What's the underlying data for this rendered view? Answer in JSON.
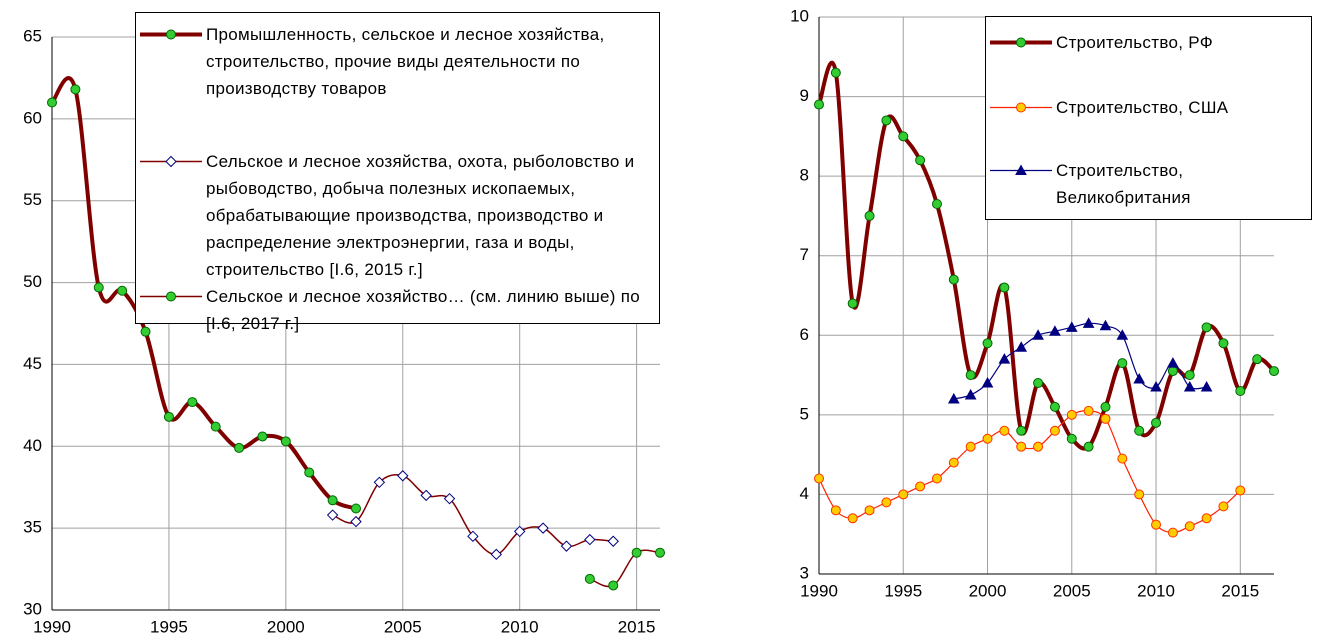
{
  "chart_data": [
    {
      "type": "line",
      "xlim": [
        1990,
        2016
      ],
      "xticks": [
        1990,
        1995,
        2000,
        2005,
        2010,
        2015
      ],
      "ylim": [
        30,
        65
      ],
      "yticks": [
        30,
        35,
        40,
        45,
        50,
        55,
        60,
        65
      ],
      "grid": true,
      "legend": "top-right",
      "x": [
        1990,
        1991,
        1992,
        1993,
        1994,
        1995,
        1996,
        1997,
        1998,
        1999,
        2000,
        2001,
        2002,
        2003,
        2004,
        2005,
        2006,
        2007,
        2008,
        2009,
        2010,
        2011,
        2012,
        2013,
        2014,
        2015,
        2016
      ],
      "series": [
        {
          "name": "Промышленность, сельское и лесное хозяйства, строительство, прочие виды деятельности по производству товаров",
          "color": "#800000",
          "width": 4,
          "marker": "circle",
          "marker_fill": "#33cc33",
          "marker_stroke": "#006600",
          "values": [
            61,
            61.8,
            49.7,
            49.5,
            47,
            41.8,
            42.7,
            41.2,
            39.9,
            40.6,
            40.3,
            38.4,
            36.7,
            36.2,
            null,
            null,
            null,
            null,
            null,
            null,
            null,
            null,
            null,
            null,
            null,
            null,
            null
          ]
        },
        {
          "name": "Сельское и лесное хозяйства, охота, рыболовство и рыбоводство, добыча полезных ископаемых, обрабатывающие производства, производство и распределение электроэнергии, газа и воды, строительство [I.6, 2015 г.]",
          "color": "#800000",
          "width": 1.5,
          "marker": "diamond",
          "marker_fill": "#ffffff",
          "marker_stroke": "#000080",
          "values": [
            null,
            null,
            null,
            null,
            null,
            null,
            null,
            null,
            null,
            null,
            null,
            null,
            35.8,
            35.4,
            37.8,
            38.2,
            37,
            36.8,
            34.5,
            33.4,
            34.8,
            35,
            33.9,
            34.3,
            34.2,
            null,
            null
          ]
        },
        {
          "name": "Сельское и лесное хозяйство… (см. линию выше) по [I.6, 2017 г.]",
          "color": "#800000",
          "width": 1.5,
          "marker": "circle",
          "marker_fill": "#33cc33",
          "marker_stroke": "#006600",
          "values": [
            null,
            null,
            null,
            null,
            null,
            null,
            null,
            null,
            null,
            null,
            null,
            null,
            null,
            null,
            null,
            null,
            null,
            null,
            null,
            null,
            null,
            null,
            null,
            31.9,
            31.5,
            33.5,
            33.5
          ]
        }
      ]
    },
    {
      "type": "line",
      "xlim": [
        1990,
        2017
      ],
      "xticks": [
        1990,
        1995,
        2000,
        2005,
        2010,
        2015
      ],
      "ylim": [
        3,
        10
      ],
      "yticks": [
        3,
        4,
        5,
        6,
        7,
        8,
        9,
        10
      ],
      "grid": true,
      "legend": "top-right",
      "x": [
        1990,
        1991,
        1992,
        1993,
        1994,
        1995,
        1996,
        1997,
        1998,
        1999,
        2000,
        2001,
        2002,
        2003,
        2004,
        2005,
        2006,
        2007,
        2008,
        2009,
        2010,
        2011,
        2012,
        2013,
        2014,
        2015,
        2016,
        2017
      ],
      "series": [
        {
          "name": "Строительство, РФ",
          "color": "#800000",
          "width": 4,
          "marker": "circle",
          "marker_fill": "#33cc33",
          "marker_stroke": "#006600",
          "values": [
            8.9,
            9.3,
            6.4,
            7.5,
            8.7,
            8.5,
            8.2,
            7.65,
            6.7,
            5.5,
            5.9,
            6.6,
            4.8,
            5.4,
            5.1,
            4.7,
            4.6,
            5.1,
            5.65,
            4.8,
            4.9,
            5.55,
            5.5,
            6.1,
            5.9,
            5.3,
            5.7,
            5.55
          ]
        },
        {
          "name": "Строительство, США",
          "color": "#ff2000",
          "width": 1.2,
          "marker": "circle",
          "marker_fill": "#ffcc00",
          "marker_stroke": "#ff3300",
          "values": [
            4.2,
            3.8,
            3.7,
            3.8,
            3.9,
            4.0,
            4.1,
            4.2,
            4.4,
            4.6,
            4.7,
            4.8,
            4.6,
            4.6,
            4.8,
            5.0,
            5.05,
            4.95,
            4.45,
            4.0,
            3.62,
            3.52,
            3.6,
            3.7,
            3.85,
            4.05,
            null,
            null
          ]
        },
        {
          "name": "Строительство, Великобритания",
          "color": "#000080",
          "width": 1.2,
          "marker": "triangle",
          "marker_fill": "#000080",
          "marker_stroke": "#000080",
          "values": [
            null,
            null,
            null,
            null,
            null,
            null,
            null,
            null,
            5.2,
            5.25,
            5.4,
            5.7,
            5.85,
            6.0,
            6.05,
            6.1,
            6.15,
            6.12,
            6.0,
            5.45,
            5.35,
            5.65,
            5.35,
            5.35,
            null,
            null,
            null,
            null
          ]
        }
      ]
    }
  ]
}
